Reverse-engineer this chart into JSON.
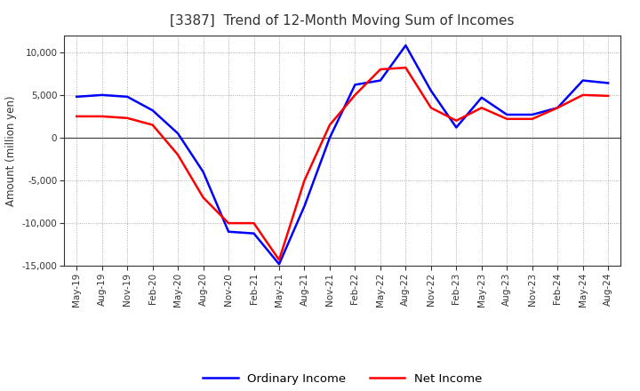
{
  "title": "[3387]  Trend of 12-Month Moving Sum of Incomes",
  "ylabel": "Amount (million yen)",
  "x_labels": [
    "May-19",
    "Aug-19",
    "Nov-19",
    "Feb-20",
    "May-20",
    "Aug-20",
    "Nov-20",
    "Feb-21",
    "May-21",
    "Aug-21",
    "Nov-21",
    "Feb-22",
    "May-22",
    "Aug-22",
    "Nov-22",
    "Feb-23",
    "May-23",
    "Aug-23",
    "Nov-23",
    "Feb-24",
    "May-24",
    "Aug-24"
  ],
  "ordinary_income": [
    4800,
    5000,
    4800,
    3200,
    500,
    -4000,
    -11000,
    -11200,
    -14800,
    -8000,
    0,
    6200,
    6700,
    10800,
    5500,
    1200,
    4700,
    2700,
    2700,
    3500,
    6700,
    6400
  ],
  "net_income": [
    2500,
    2500,
    2300,
    1500,
    -2000,
    -7000,
    -10000,
    -10000,
    -14300,
    -5000,
    1500,
    5000,
    8000,
    8200,
    3500,
    2000,
    3500,
    2200,
    2200,
    3500,
    5000,
    4900
  ],
  "ordinary_income_color": "#0000FF",
  "net_income_color": "#FF0000",
  "ylim": [
    -15000,
    12000
  ],
  "yticks": [
    -15000,
    -10000,
    -5000,
    0,
    5000,
    10000
  ],
  "background_color": "#FFFFFF",
  "plot_bg_color": "#FFFFFF",
  "grid_color": "#999999",
  "title_color": "#333333",
  "legend_labels": [
    "Ordinary Income",
    "Net Income"
  ],
  "line_width": 1.8
}
